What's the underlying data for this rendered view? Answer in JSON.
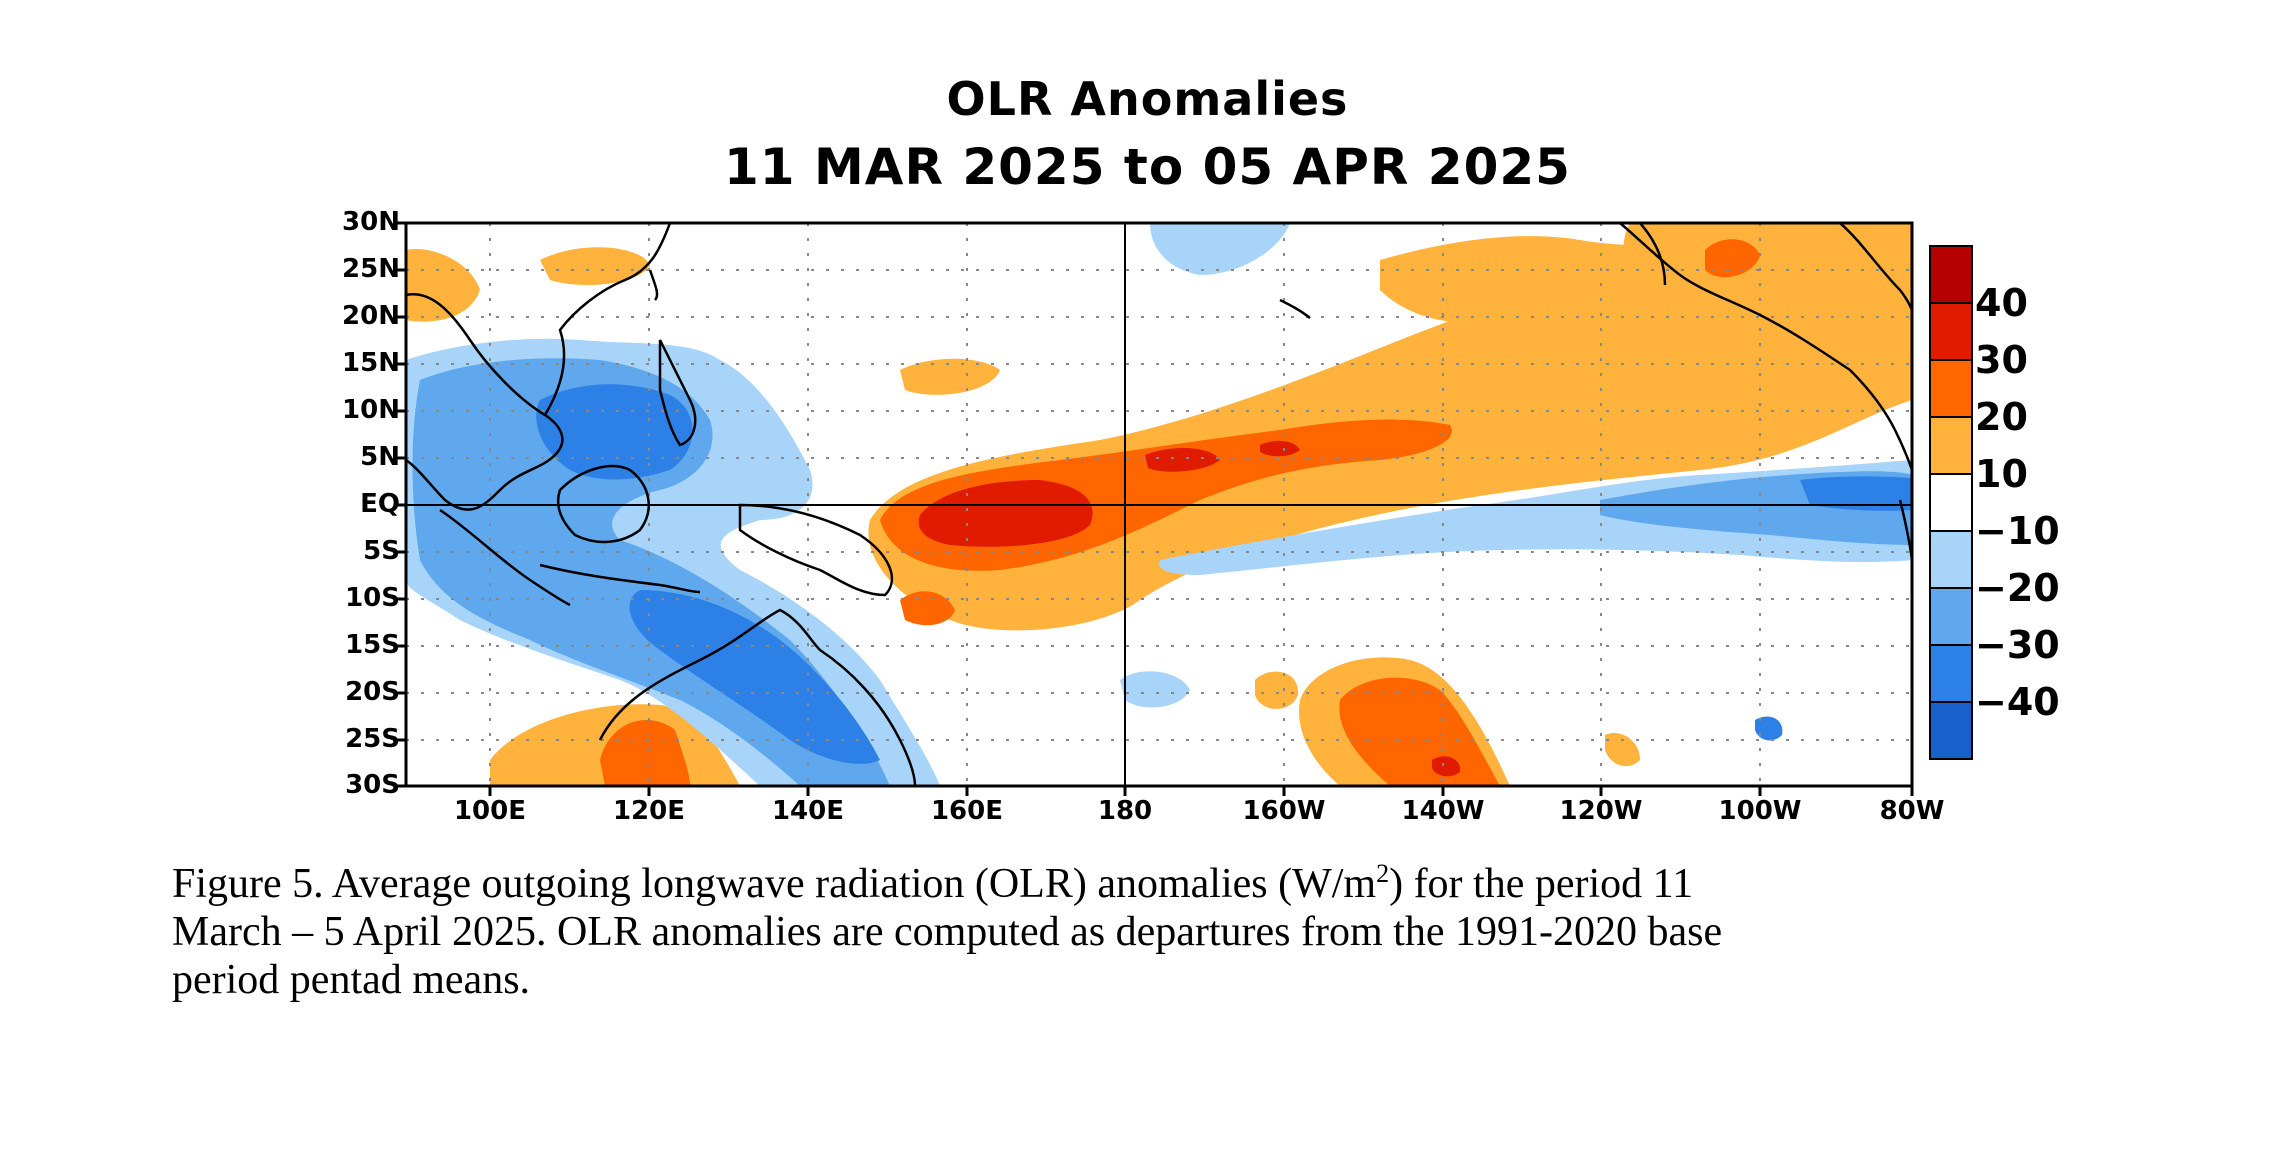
{
  "title": "OLR Anomalies",
  "subtitle": "11 MAR 2025 to 05 APR 2025",
  "lat_labels": [
    "30N",
    "25N",
    "20N",
    "15N",
    "10N",
    "5N",
    "EQ",
    "5S",
    "10S",
    "15S",
    "20S",
    "25S",
    "30S"
  ],
  "lon_labels": [
    "100E",
    "120E",
    "140E",
    "160E",
    "180",
    "160W",
    "140W",
    "120W",
    "100W",
    "80W"
  ],
  "colorbar": {
    "labels": [
      "40",
      "30",
      "20",
      "10",
      "−10",
      "−20",
      "−30",
      "−40"
    ],
    "colors": [
      "#b50000",
      "#e01b00",
      "#ff6600",
      "#ffb23c",
      "#ffffff",
      "#a8d4fa",
      "#5fa8ee",
      "#2c80e6",
      "#1860cc"
    ]
  },
  "anomaly_colors": {
    "pos_10_20": "#ffb23c",
    "pos_20_30": "#ff6600",
    "pos_30_40": "#e01b00",
    "neg_10_20": "#a8d4fa",
    "neg_20_30": "#5fa8ee",
    "neg_30_40": "#2c80e6"
  },
  "caption": {
    "line1_pre": "Figure 5. Average outgoing longwave radiation (OLR) anomalies (W/m",
    "sup": "2",
    "line1_post": ") for the period 11",
    "line2": "March – 5 April 2025.  OLR anomalies are computed as departures from the 1991-2020 base",
    "line3": "period pentad means."
  }
}
